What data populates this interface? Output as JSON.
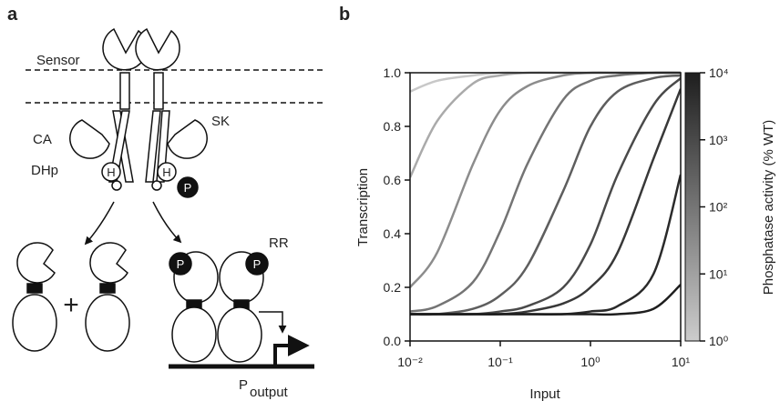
{
  "panel_labels": [
    "a",
    "b"
  ],
  "diagram": {
    "membrane_label": "Sensor",
    "domain_labels": {
      "ca": "CA",
      "sk": "SK",
      "dhp": "DHp",
      "rr": "RR"
    },
    "histidines": [
      "H",
      "H"
    ],
    "phosphates": [
      "P",
      "P",
      "P"
    ],
    "plus": "+",
    "promoter": {
      "symbol": "P",
      "subscript": "output"
    }
  },
  "chart_data": {
    "type": "line",
    "xlabel": "Input",
    "ylabel": "Transcription",
    "xscale": "log",
    "xlim": [
      0.01,
      10
    ],
    "xticks": [
      {
        "value": 0.01,
        "label": "10⁻²"
      },
      {
        "value": 0.1,
        "label": "10⁻¹"
      },
      {
        "value": 1,
        "label": "10⁰"
      },
      {
        "value": 10,
        "label": "10¹"
      }
    ],
    "ylim": [
      0,
      1
    ],
    "yticks": [
      {
        "value": 0,
        "label": "0.0"
      },
      {
        "value": 0.2,
        "label": "0.2"
      },
      {
        "value": 0.4,
        "label": "0.4"
      },
      {
        "value": 0.6,
        "label": "0.6"
      },
      {
        "value": 0.8,
        "label": "0.8"
      },
      {
        "value": 1,
        "label": "1.0"
      }
    ],
    "x": [
      0.01,
      0.02,
      0.05,
      0.1,
      0.2,
      0.5,
      1,
      2,
      5,
      10
    ],
    "series": [
      {
        "color": "#c8c8c8",
        "values": [
          0.93,
          0.97,
          0.99,
          1,
          1,
          1,
          1,
          1,
          1,
          1
        ]
      },
      {
        "color": "#aaaaaa",
        "values": [
          0.61,
          0.82,
          0.96,
          0.99,
          1,
          1,
          1,
          1,
          1,
          1
        ]
      },
      {
        "color": "#8c8c8c",
        "values": [
          0.2,
          0.33,
          0.66,
          0.86,
          0.95,
          0.99,
          1,
          1,
          1,
          1
        ]
      },
      {
        "color": "#747474",
        "values": [
          0.11,
          0.13,
          0.22,
          0.41,
          0.66,
          0.9,
          0.97,
          0.99,
          1,
          1
        ]
      },
      {
        "color": "#5e5e5e",
        "values": [
          0.1,
          0.1,
          0.12,
          0.17,
          0.28,
          0.56,
          0.8,
          0.93,
          0.98,
          0.99
        ]
      },
      {
        "color": "#4a4a4a",
        "values": [
          0.1,
          0.1,
          0.1,
          0.11,
          0.13,
          0.2,
          0.36,
          0.62,
          0.88,
          0.98
        ]
      },
      {
        "color": "#383838",
        "values": [
          0.1,
          0.1,
          0.1,
          0.1,
          0.11,
          0.14,
          0.2,
          0.33,
          0.68,
          0.94
        ]
      },
      {
        "color": "#2a2a2a",
        "values": [
          0.1,
          0.1,
          0.1,
          0.1,
          0.1,
          0.1,
          0.11,
          0.13,
          0.25,
          0.62
        ]
      },
      {
        "color": "#1e1e1e",
        "values": [
          0.1,
          0.1,
          0.1,
          0.1,
          0.1,
          0.1,
          0.1,
          0.1,
          0.12,
          0.21
        ]
      }
    ],
    "colorbar": {
      "label": "Phosphatase activity (% WT)",
      "scale": "log",
      "lim": [
        1,
        10000
      ],
      "colors": [
        "#cccccc",
        "#1e1e1e"
      ],
      "ticks": [
        {
          "value": 1,
          "label": "10⁰"
        },
        {
          "value": 10,
          "label": "10¹"
        },
        {
          "value": 100,
          "label": "10²"
        },
        {
          "value": 1000,
          "label": "10³"
        },
        {
          "value": 10000,
          "label": "10⁴"
        }
      ]
    }
  }
}
